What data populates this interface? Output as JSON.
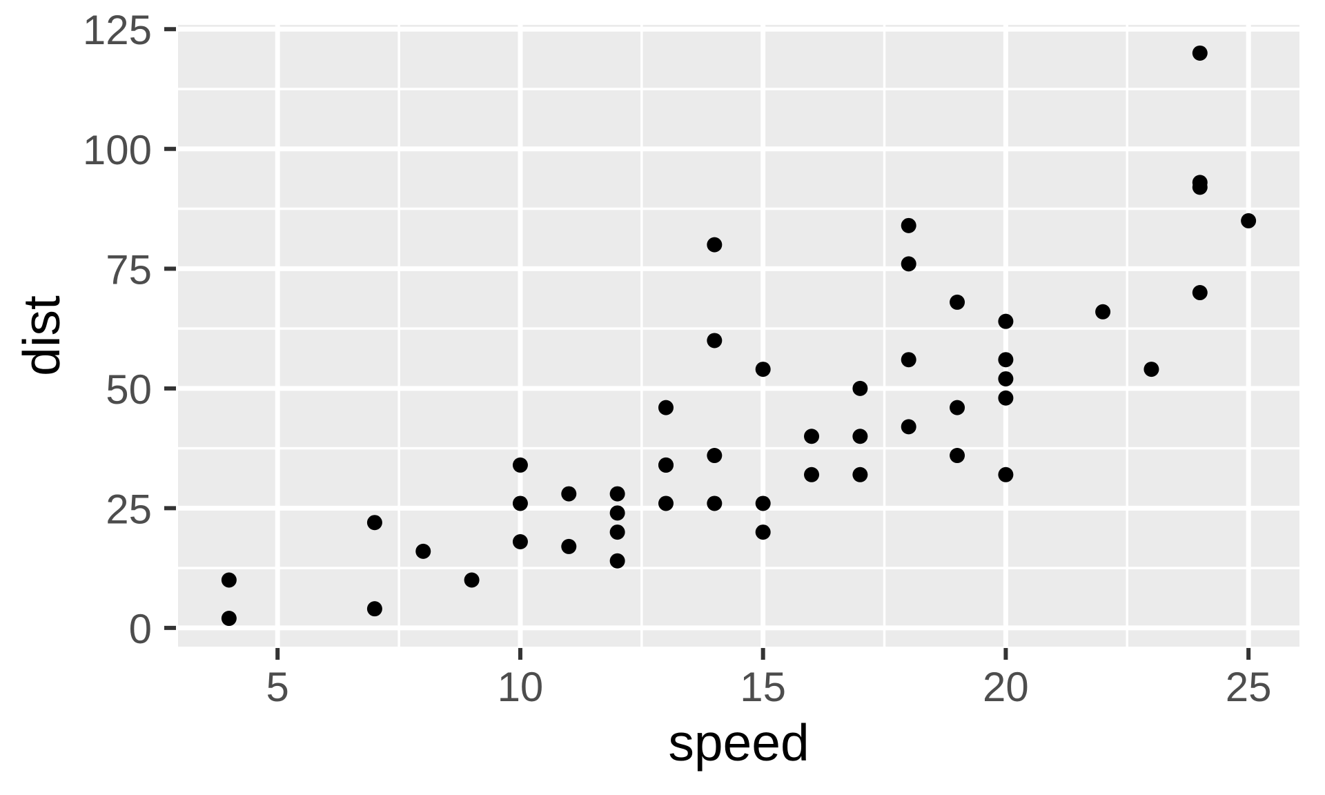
{
  "chart_data": {
    "type": "scatter",
    "title": "",
    "xlabel": "speed",
    "ylabel": "dist",
    "legend": "none",
    "grid": "major-and-minor-white-on-grey",
    "xlim": [
      2.95,
      26.05
    ],
    "ylim": [
      -3.9,
      125.9
    ],
    "x_ticks": [
      5,
      10,
      15,
      20,
      25
    ],
    "y_ticks": [
      0,
      25,
      50,
      75,
      100,
      125
    ],
    "x_minor_ticks": [
      7.5,
      12.5,
      17.5,
      22.5
    ],
    "y_minor_ticks": [
      12.5,
      37.5,
      62.5,
      87.5,
      112.5
    ],
    "points": [
      [
        4,
        2
      ],
      [
        4,
        10
      ],
      [
        7,
        4
      ],
      [
        7,
        22
      ],
      [
        8,
        16
      ],
      [
        9,
        10
      ],
      [
        10,
        18
      ],
      [
        10,
        26
      ],
      [
        10,
        34
      ],
      [
        11,
        17
      ],
      [
        11,
        28
      ],
      [
        12,
        14
      ],
      [
        12,
        20
      ],
      [
        12,
        24
      ],
      [
        12,
        28
      ],
      [
        13,
        26
      ],
      [
        13,
        34
      ],
      [
        13,
        34
      ],
      [
        13,
        46
      ],
      [
        14,
        26
      ],
      [
        14,
        36
      ],
      [
        14,
        60
      ],
      [
        14,
        80
      ],
      [
        15,
        20
      ],
      [
        15,
        26
      ],
      [
        15,
        54
      ],
      [
        16,
        32
      ],
      [
        16,
        40
      ],
      [
        17,
        32
      ],
      [
        17,
        40
      ],
      [
        17,
        50
      ],
      [
        18,
        42
      ],
      [
        18,
        56
      ],
      [
        18,
        76
      ],
      [
        18,
        84
      ],
      [
        19,
        36
      ],
      [
        19,
        46
      ],
      [
        19,
        68
      ],
      [
        20,
        32
      ],
      [
        20,
        48
      ],
      [
        20,
        52
      ],
      [
        20,
        56
      ],
      [
        20,
        64
      ],
      [
        22,
        66
      ],
      [
        23,
        54
      ],
      [
        24,
        70
      ],
      [
        24,
        92
      ],
      [
        24,
        93
      ],
      [
        24,
        120
      ],
      [
        25,
        85
      ]
    ],
    "colors": {
      "figure_background": "#FFFFFF",
      "panel_background": "#EBEBEB",
      "gridline": "#FFFFFF",
      "point": "#000000",
      "tick_mark": "#333333",
      "tick_label": "#4D4D4D",
      "axis_title": "#000000"
    }
  }
}
